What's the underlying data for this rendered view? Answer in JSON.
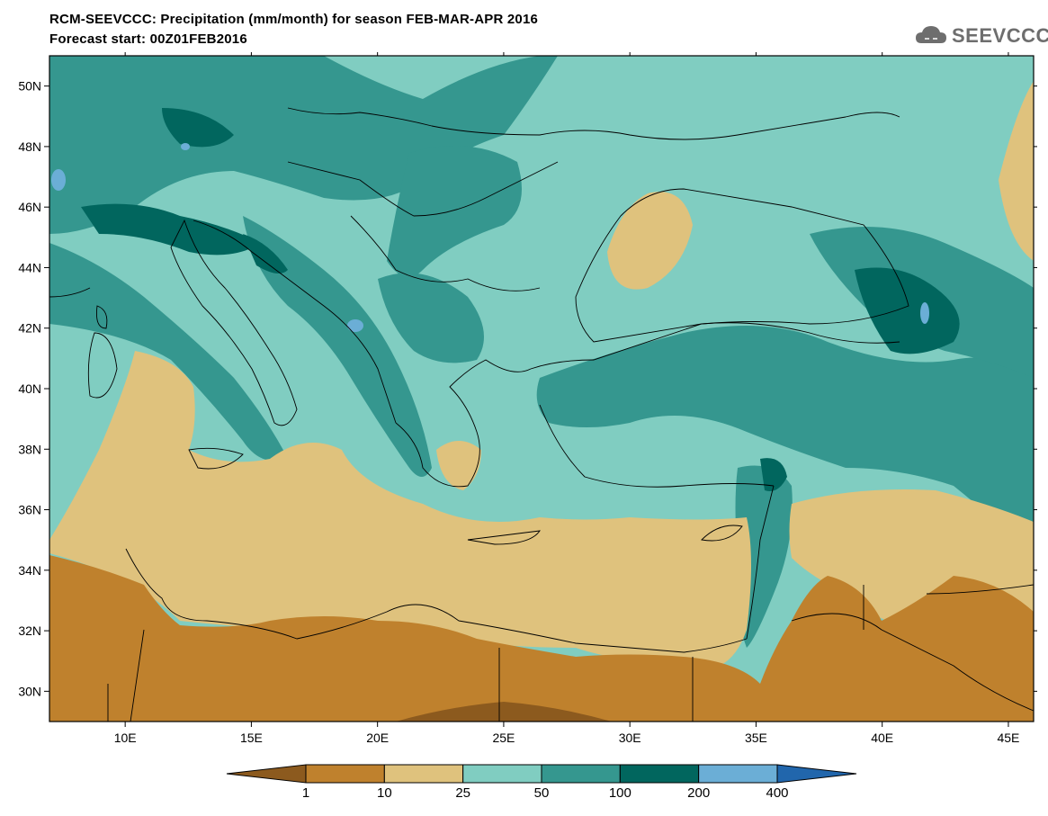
{
  "header": {
    "title_line1": "RCM-SEEVCCC: Precipitation (mm/month) for season FEB-MAR-APR 2016",
    "title_line2": "Forecast start: 00Z01FEB2016",
    "logo_text": "SEEVCCC"
  },
  "map": {
    "lon_range": [
      7,
      46
    ],
    "lat_range": [
      29,
      51
    ],
    "lat_labels": [
      "50N",
      "48N",
      "46N",
      "44N",
      "42N",
      "40N",
      "38N",
      "36N",
      "34N",
      "32N",
      "30N"
    ],
    "lon_labels": [
      "10E",
      "15E",
      "20E",
      "25E",
      "30E",
      "35E",
      "40E",
      "45E"
    ]
  },
  "colorbar": {
    "colors": [
      "#8c5a1e",
      "#bf812d",
      "#dfc27d",
      "#80cdc1",
      "#35978f",
      "#01665e",
      "#6baed6",
      "#2166ac"
    ],
    "labels": [
      "1",
      "10",
      "25",
      "50",
      "100",
      "200",
      "400"
    ]
  },
  "colors": {
    "dry_dark": "#8c5a1e",
    "dry": "#bf812d",
    "dry_light": "#dfc27d",
    "wet_light": "#80cdc1",
    "wet": "#35978f",
    "wet_dark": "#01665e",
    "very_wet": "#6baed6",
    "extreme": "#2166ac"
  }
}
